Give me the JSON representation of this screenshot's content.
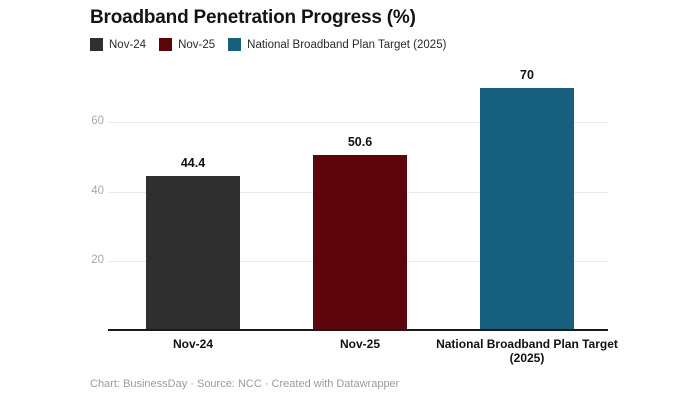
{
  "title": "Broadband Penetration Progress (%)",
  "legend": {
    "items": [
      {
        "label": "Nov-24",
        "color": "#2f2f2f"
      },
      {
        "label": "Nov-25",
        "color": "#5c060c"
      },
      {
        "label": "National Broadband Plan Target (2025)",
        "color": "#16607d"
      }
    ]
  },
  "chart_data": {
    "type": "bar",
    "categories": [
      "Nov-24",
      "Nov-25",
      "National Broadband Plan Target (2025)"
    ],
    "values": [
      44.4,
      50.6,
      70
    ],
    "value_labels": [
      "44.4",
      "50.6",
      "70"
    ],
    "bar_colors": [
      "#2f2f2f",
      "#5c060c",
      "#16607d"
    ],
    "title": "Broadband Penetration Progress (%)",
    "xlabel": "",
    "ylabel": "",
    "ylim": [
      0,
      72
    ],
    "yticks": [
      20,
      40,
      60
    ],
    "grid": true,
    "legend_position": "top",
    "grid_color": "#e9e9e9",
    "axis_color": "#1a1a1a",
    "tick_label_color": "#a9a9a9"
  },
  "footer": "Chart: BusinessDay · Source: NCC · Created with Datawrapper"
}
